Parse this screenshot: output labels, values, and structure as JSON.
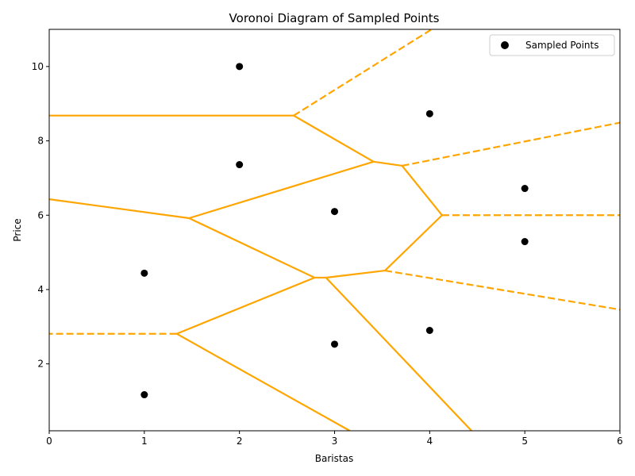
{
  "chart_data": {
    "type": "scatter",
    "title": "Voronoi Diagram of Sampled Points",
    "xlabel": "Baristas",
    "ylabel": "Price",
    "xlim": [
      0,
      6
    ],
    "ylim": [
      0.2,
      11
    ],
    "xticks": [
      0,
      1,
      2,
      3,
      4,
      5,
      6
    ],
    "yticks": [
      2,
      4,
      6,
      8,
      10
    ],
    "xtick_labels": [
      "0",
      "1",
      "2",
      "3",
      "4",
      "5",
      "6"
    ],
    "ytick_labels": [
      "2",
      "4",
      "6",
      "8",
      "10"
    ],
    "grid": false,
    "legend_position": "top-right",
    "colors": {
      "points": "#000000",
      "edges": "#FFA500"
    },
    "series": [
      {
        "name": "Sampled Points",
        "points": [
          {
            "x": 1,
            "y": 1.17
          },
          {
            "x": 1,
            "y": 4.44
          },
          {
            "x": 2,
            "y": 7.36
          },
          {
            "x": 2,
            "y": 10.0
          },
          {
            "x": 3,
            "y": 2.53
          },
          {
            "x": 3,
            "y": 6.1
          },
          {
            "x": 4,
            "y": 2.9
          },
          {
            "x": 4,
            "y": 8.73
          },
          {
            "x": 5,
            "y": 5.29
          },
          {
            "x": 5,
            "y": 6.72
          }
        ]
      }
    ],
    "voronoi_edges": {
      "solid": [
        [
          [
            0,
            8.68
          ],
          [
            2.57,
            8.68
          ]
        ],
        [
          [
            2.57,
            8.68
          ],
          [
            3.41,
            7.44
          ]
        ],
        [
          [
            3.41,
            7.44
          ],
          [
            3.71,
            7.33
          ]
        ],
        [
          [
            3.41,
            7.44
          ],
          [
            1.47,
            5.92
          ]
        ],
        [
          [
            0,
            6.43
          ],
          [
            1.47,
            5.92
          ]
        ],
        [
          [
            1.47,
            5.92
          ],
          [
            2.79,
            4.32
          ]
        ],
        [
          [
            2.79,
            4.32
          ],
          [
            2.91,
            4.32
          ]
        ],
        [
          [
            2.91,
            4.32
          ],
          [
            3.53,
            4.51
          ]
        ],
        [
          [
            3.53,
            4.51
          ],
          [
            4.13,
            6.0
          ]
        ],
        [
          [
            4.13,
            6.0
          ],
          [
            3.71,
            7.33
          ]
        ],
        [
          [
            2.79,
            4.32
          ],
          [
            1.34,
            2.81
          ]
        ],
        [
          [
            1.34,
            2.81
          ],
          [
            3.16,
            0.2
          ]
        ],
        [
          [
            2.91,
            4.32
          ],
          [
            4.44,
            0.2
          ]
        ]
      ],
      "dashed": [
        [
          [
            2.57,
            8.68
          ],
          [
            4.02,
            11.0
          ]
        ],
        [
          [
            3.71,
            7.33
          ],
          [
            6,
            8.49
          ]
        ],
        [
          [
            4.13,
            6.0
          ],
          [
            6,
            6.0
          ]
        ],
        [
          [
            3.53,
            4.51
          ],
          [
            6,
            3.46
          ]
        ],
        [
          [
            1.34,
            2.81
          ],
          [
            0,
            2.81
          ]
        ]
      ]
    }
  }
}
